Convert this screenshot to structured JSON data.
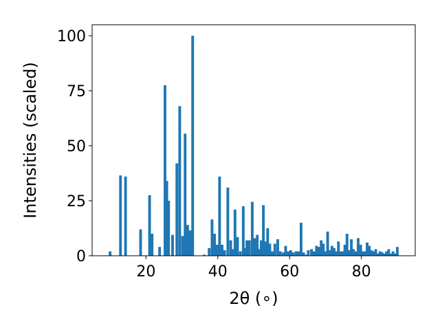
{
  "chart_data": {
    "type": "bar",
    "xlabel": "2θ (∘)",
    "ylabel": "Intensities (scaled)",
    "xlim": [
      5,
      95
    ],
    "ylim": [
      0,
      105
    ],
    "xticks": [
      20,
      40,
      60,
      80
    ],
    "yticks": [
      0,
      25,
      50,
      75,
      100
    ],
    "bar_width": 0.75,
    "grid": false,
    "color": "#1f77b4",
    "x": [
      10.0,
      12.9,
      14.3,
      18.5,
      21.0,
      21.7,
      23.8,
      25.3,
      25.8,
      26.3,
      27.4,
      28.6,
      29.4,
      30.2,
      30.9,
      31.6,
      32.3,
      33.0,
      36.2,
      37.6,
      38.4,
      39.1,
      39.8,
      40.5,
      41.2,
      41.9,
      42.8,
      43.6,
      44.1,
      44.8,
      45.5,
      46.3,
      47.1,
      47.6,
      48.1,
      48.8,
      49.6,
      50.3,
      51.0,
      51.5,
      52.1,
      52.7,
      53.3,
      53.9,
      54.5,
      55.2,
      55.9,
      56.7,
      57.4,
      58.2,
      58.9,
      59.6,
      60.3,
      61.0,
      61.8,
      62.5,
      63.2,
      63.9,
      64.5,
      65.2,
      66.1,
      66.8,
      67.5,
      68.2,
      68.8,
      69.4,
      70.0,
      70.6,
      71.2,
      71.8,
      72.4,
      73.0,
      73.6,
      74.2,
      74.8,
      75.4,
      76.0,
      76.6,
      77.2,
      77.8,
      78.4,
      79.1,
      79.8,
      80.4,
      81.0,
      81.6,
      82.2,
      82.8,
      83.4,
      84.0,
      84.6,
      85.2,
      85.8,
      86.4,
      87.0,
      87.6,
      88.2,
      88.8,
      89.4,
      90.0
    ],
    "values": [
      2,
      36.5,
      36,
      12,
      27.5,
      10,
      4,
      77.5,
      34,
      25,
      9.5,
      42,
      68,
      9,
      55.5,
      14,
      11.5,
      100,
      0.5,
      3.5,
      16.5,
      10,
      5,
      36,
      5,
      2.5,
      31,
      7,
      3,
      21,
      8.5,
      2,
      22.5,
      3.5,
      7,
      7,
      24.5,
      8,
      9.5,
      3,
      7,
      23,
      6.5,
      12.5,
      5.5,
      2,
      5.5,
      7.5,
      2,
      1.5,
      4.5,
      2,
      2.5,
      1.5,
      2,
      2,
      15,
      1.5,
      0.5,
      2.5,
      3,
      2,
      4.5,
      4,
      7,
      5.5,
      2,
      11,
      2.5,
      4.5,
      3.5,
      2,
      6.5,
      2,
      2,
      5,
      10,
      2.5,
      7.5,
      3,
      2,
      8,
      5,
      2,
      2,
      6,
      4.5,
      2.5,
      2,
      3,
      1,
      2,
      1.5,
      1,
      2,
      3,
      1,
      2,
      1,
      4
    ]
  }
}
